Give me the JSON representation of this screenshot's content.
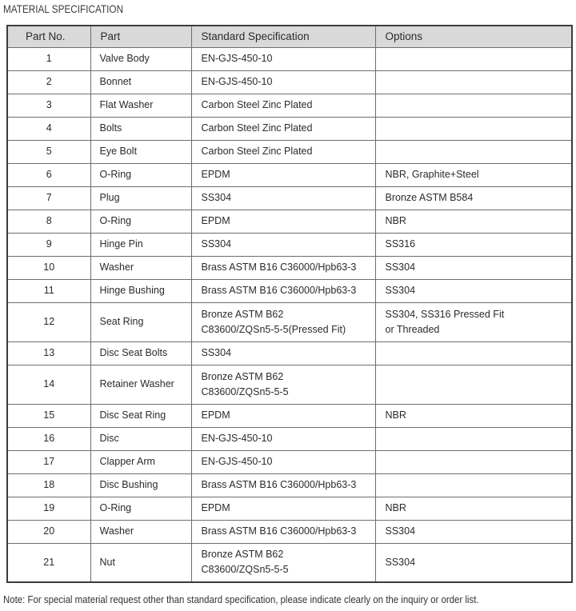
{
  "page": {
    "title": "MATERIAL SPECIFICATION",
    "note": "Note: For special material request other than standard specification, please indicate clearly on the inquiry or order list."
  },
  "table": {
    "columns": [
      "Part No.",
      "Part",
      "Standard Specification",
      "Options"
    ],
    "rows": [
      {
        "part_no": "1",
        "part": "Valve Body",
        "spec": [
          "EN-GJS-450-10"
        ],
        "options": []
      },
      {
        "part_no": "2",
        "part": "Bonnet",
        "spec": [
          "EN-GJS-450-10"
        ],
        "options": []
      },
      {
        "part_no": "3",
        "part": "Flat Washer",
        "spec": [
          "Carbon Steel Zinc Plated"
        ],
        "options": []
      },
      {
        "part_no": "4",
        "part": "Bolts",
        "spec": [
          "Carbon Steel Zinc Plated"
        ],
        "options": []
      },
      {
        "part_no": "5",
        "part": "Eye Bolt",
        "spec": [
          "Carbon Steel Zinc Plated"
        ],
        "options": []
      },
      {
        "part_no": "6",
        "part": "O-Ring",
        "spec": [
          "EPDM"
        ],
        "options": [
          "NBR, Graphite+Steel"
        ]
      },
      {
        "part_no": "7",
        "part": "Plug",
        "spec": [
          "SS304"
        ],
        "options": [
          "Bronze ASTM B584"
        ]
      },
      {
        "part_no": "8",
        "part": "O-Ring",
        "spec": [
          "EPDM"
        ],
        "options": [
          "NBR"
        ]
      },
      {
        "part_no": "9",
        "part": "Hinge Pin",
        "spec": [
          "SS304"
        ],
        "options": [
          "SS316"
        ]
      },
      {
        "part_no": "10",
        "part": "Washer",
        "spec": [
          "Brass ASTM B16 C36000/Hpb63-3"
        ],
        "options": [
          "SS304"
        ]
      },
      {
        "part_no": "11",
        "part": "Hinge Bushing",
        "spec": [
          "Brass ASTM B16 C36000/Hpb63-3"
        ],
        "options": [
          "SS304"
        ]
      },
      {
        "part_no": "12",
        "part": "Seat Ring",
        "spec": [
          "Bronze ASTM B62",
          "C83600/ZQSn5-5-5(Pressed Fit)"
        ],
        "options": [
          "SS304, SS316 Pressed Fit",
          "or Threaded"
        ]
      },
      {
        "part_no": "13",
        "part": "Disc Seat Bolts",
        "spec": [
          "SS304"
        ],
        "options": []
      },
      {
        "part_no": "14",
        "part": "Retainer Washer",
        "spec": [
          "Bronze ASTM B62",
          "C83600/ZQSn5-5-5"
        ],
        "options": []
      },
      {
        "part_no": "15",
        "part": "Disc Seat Ring",
        "spec": [
          "EPDM"
        ],
        "options": [
          "NBR"
        ]
      },
      {
        "part_no": "16",
        "part": "Disc",
        "spec": [
          "EN-GJS-450-10"
        ],
        "options": []
      },
      {
        "part_no": "17",
        "part": "Clapper Arm",
        "spec": [
          "EN-GJS-450-10"
        ],
        "options": []
      },
      {
        "part_no": "18",
        "part": "Disc Bushing",
        "spec": [
          "Brass ASTM B16 C36000/Hpb63-3"
        ],
        "options": []
      },
      {
        "part_no": "19",
        "part": "O-Ring",
        "spec": [
          "EPDM"
        ],
        "options": [
          "NBR"
        ]
      },
      {
        "part_no": "20",
        "part": "Washer",
        "spec": [
          "Brass ASTM B16 C36000/Hpb63-3"
        ],
        "options": [
          "SS304"
        ]
      },
      {
        "part_no": "21",
        "part": "Nut",
        "spec": [
          "Bronze ASTM B62",
          "C83600/ZQSn5-5-5"
        ],
        "options": [
          "SS304"
        ]
      }
    ]
  },
  "colors": {
    "header_bg": "#d9d9d9",
    "border_outer": "#3b3b3b",
    "border_inner": "#6e6e6e",
    "text": "#2b2b2b"
  }
}
